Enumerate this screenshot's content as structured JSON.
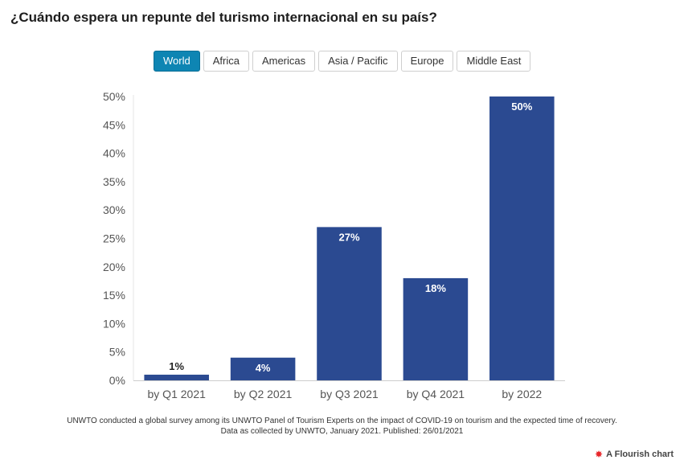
{
  "header": {
    "title": "¿Cuándo espera un repunte del turismo internacional en su país?"
  },
  "filters": {
    "options": [
      "World",
      "Africa",
      "Americas",
      "Asia / Pacific",
      "Europe",
      "Middle East"
    ],
    "selected": "World"
  },
  "chart_data": {
    "type": "bar",
    "title": "¿Cuándo espera un repunte del turismo internacional en su país?",
    "categories": [
      "by Q1 2021",
      "by Q2 2021",
      "by Q3 2021",
      "by Q4 2021",
      "by 2022"
    ],
    "values": [
      1,
      4,
      27,
      18,
      50
    ],
    "value_labels": [
      "1%",
      "4%",
      "27%",
      "18%",
      "50%"
    ],
    "ylim": [
      0,
      50
    ],
    "yticks": [
      0,
      5,
      10,
      15,
      20,
      25,
      30,
      35,
      40,
      45,
      50
    ],
    "ytick_labels": [
      "0%",
      "5%",
      "10%",
      "15%",
      "20%",
      "25%",
      "30%",
      "35%",
      "40%",
      "45%",
      "50%"
    ],
    "xlabel": "",
    "ylabel": "",
    "grid": false,
    "bar_color": "#2b4a91"
  },
  "footer": {
    "note_line1": "UNWTO conducted a global survey among its UNWTO Panel of Tourism Experts on the impact of COVID-19 on tourism and the expected time of recovery.",
    "note_line2": "Data as collected by UNWTO, January 2021. Published: 26/01/2021",
    "credit": "A Flourish chart"
  }
}
